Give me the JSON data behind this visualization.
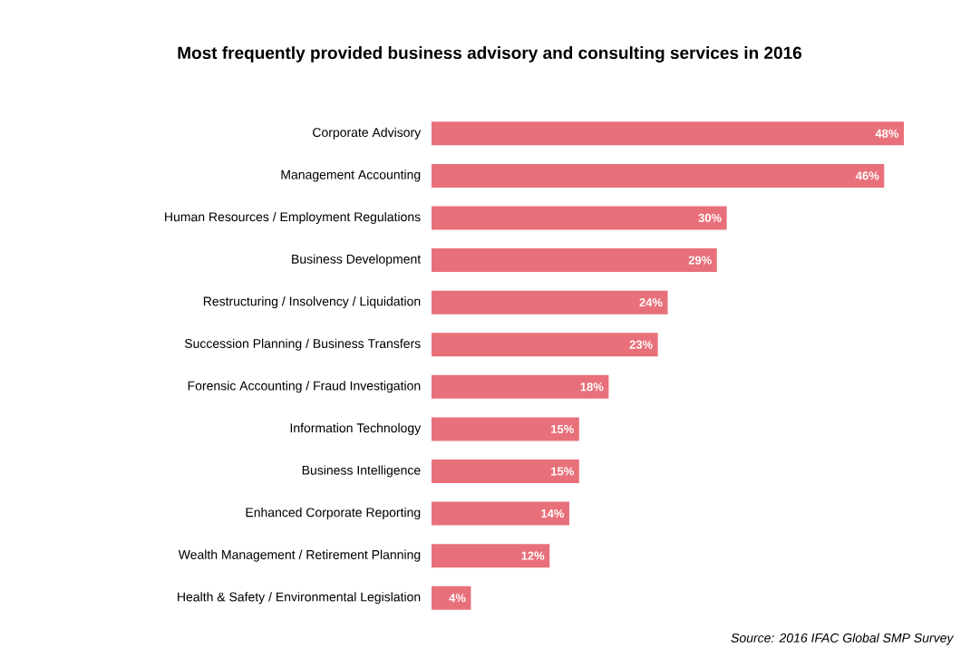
{
  "chart_data": {
    "type": "bar",
    "orientation": "horizontal",
    "title": "Most frequently provided business advisory and consulting services in 2016",
    "categories": [
      "Corporate Advisory",
      "Management Accounting",
      "Human Resources / Employment Regulations",
      "Business Development",
      "Restructuring / Insolvency / Liquidation",
      "Succession Planning / Business Transfers",
      "Forensic Accounting / Fraud Investigation",
      "Information Technology",
      "Business Intelligence",
      "Enhanced Corporate Reporting",
      "Wealth Management / Retirement Planning",
      "Health & Safety / Environmental Legislation"
    ],
    "values": [
      48,
      46,
      30,
      29,
      24,
      23,
      18,
      15,
      15,
      14,
      12,
      4
    ],
    "value_labels": [
      "48%",
      "46%",
      "30%",
      "29%",
      "24%",
      "23%",
      "18%",
      "15%",
      "15%",
      "14%",
      "12%",
      "4%"
    ],
    "color": "#e8707a",
    "annotations": [
      "Source: 2016 IFAC Global SMP Survey"
    ]
  }
}
